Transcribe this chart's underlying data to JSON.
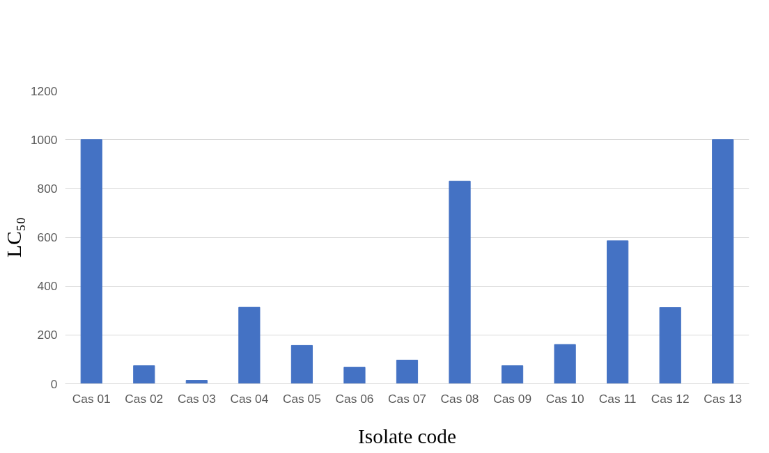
{
  "chart_data": {
    "type": "bar",
    "xlabel": "Isolate code",
    "ylabel": "LC₅₀",
    "categories": [
      "Cas 01",
      "Cas 02",
      "Cas 03",
      "Cas 04",
      "Cas 05",
      "Cas 06",
      "Cas 07",
      "Cas 08",
      "Cas 09",
      "Cas 10",
      "Cas 11",
      "Cas 12",
      "Cas 13"
    ],
    "values": [
      1000,
      74,
      14,
      314,
      157,
      68,
      97,
      830,
      74,
      161,
      586,
      313,
      1000
    ],
    "color": "#4472c4",
    "ylim": [
      0,
      1200
    ],
    "yticks": [
      0,
      200,
      400,
      600,
      800,
      1000,
      1200
    ],
    "grid": "y"
  }
}
